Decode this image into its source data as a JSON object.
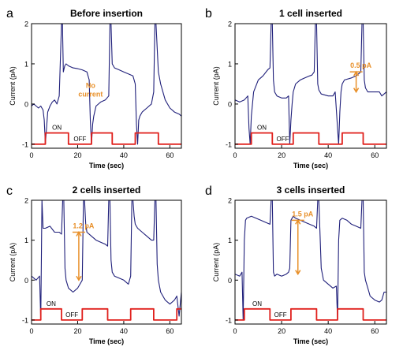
{
  "chart_data": [
    {
      "type": "line",
      "panel_letter": "a",
      "title": "Before insertion",
      "xlabel": "Time (sec)",
      "ylabel": "Current (pA)",
      "xlim": [
        0,
        65
      ],
      "ylim": [
        -1.1,
        2
      ],
      "xticks": [
        0,
        20,
        40,
        60
      ],
      "yticks": [
        -1,
        0,
        1,
        2
      ],
      "series": [
        {
          "color": "#1f1f7a",
          "x": [
            0,
            1,
            2,
            3,
            4,
            5,
            5.5,
            6,
            6.5,
            7,
            8,
            9,
            10,
            11,
            12,
            13,
            13.4,
            13.8,
            14.4,
            15,
            16,
            18,
            20,
            22,
            24,
            25,
            25.5,
            26,
            26.5,
            27,
            28,
            30,
            32,
            33.5,
            34,
            34.5,
            35,
            36,
            38,
            40,
            42,
            44,
            45,
            45.5,
            46,
            46.5,
            47,
            48,
            50,
            52,
            53,
            53.5,
            54,
            55,
            56,
            58,
            60,
            62,
            64,
            65
          ],
          "y": [
            -0.05,
            0.0,
            -0.05,
            -0.1,
            -0.05,
            -0.15,
            -0.4,
            -1.0,
            -0.6,
            -0.2,
            -0.05,
            0.05,
            0.1,
            0.0,
            0.2,
            2.0,
            2.0,
            0.8,
            0.95,
            1.0,
            0.95,
            0.9,
            0.88,
            0.85,
            0.8,
            0.6,
            -0.4,
            -1.0,
            -0.5,
            -0.3,
            -0.05,
            0.05,
            0.1,
            0.2,
            2.0,
            2.0,
            1.0,
            0.9,
            0.85,
            0.8,
            0.75,
            0.7,
            0.5,
            -0.5,
            -1.0,
            -0.4,
            -0.3,
            -0.2,
            -0.1,
            0.0,
            0.3,
            2.0,
            2.0,
            0.8,
            0.5,
            0.1,
            -0.1,
            -0.2,
            -0.25,
            -0.3
          ]
        },
        {
          "color": "#e0201c",
          "x": [
            0,
            6,
            6,
            16,
            16,
            26,
            26,
            35,
            35,
            45,
            45,
            55,
            55,
            65
          ],
          "y": [
            -1,
            -1,
            -0.72,
            -0.72,
            -1,
            -1,
            -0.72,
            -0.72,
            -1,
            -1,
            -0.72,
            -0.72,
            -1,
            -1
          ]
        }
      ],
      "annotations": [
        "No current",
        "ON",
        "OFF"
      ]
    },
    {
      "type": "line",
      "panel_letter": "b",
      "title": "1 cell inserted",
      "xlabel": "Time (sec)",
      "ylabel": "Current (pA)",
      "xlim": [
        0,
        65
      ],
      "ylim": [
        -1.1,
        2
      ],
      "xticks": [
        0,
        20,
        40,
        60
      ],
      "yticks": [
        -1,
        0,
        1,
        2
      ],
      "series": [
        {
          "color": "#1f1f7a",
          "x": [
            0,
            2,
            4,
            5.5,
            6,
            6.5,
            7,
            8,
            10,
            12,
            14,
            15,
            15.5,
            16,
            16.5,
            17,
            18,
            20,
            22,
            23,
            23.5,
            24,
            24.5,
            25,
            26,
            28,
            30,
            32,
            33,
            34,
            34.5,
            35,
            35.5,
            36,
            37,
            40,
            42,
            43,
            44,
            44.5,
            45,
            45.5,
            46,
            47,
            50,
            52,
            53,
            54,
            54.5,
            55,
            55.5,
            56,
            57,
            60,
            62,
            63,
            64,
            65
          ],
          "y": [
            0.1,
            0.05,
            0.1,
            0.2,
            -0.6,
            -1.0,
            -0.3,
            0.3,
            0.6,
            0.7,
            0.85,
            0.9,
            2.0,
            2.0,
            0.6,
            0.3,
            0.2,
            0.15,
            0.15,
            0.2,
            -1.0,
            -0.4,
            0.0,
            0.3,
            0.5,
            0.6,
            0.65,
            0.7,
            0.72,
            0.8,
            2.0,
            2.0,
            0.5,
            0.35,
            0.25,
            0.2,
            0.2,
            0.3,
            -0.6,
            -1.0,
            -0.2,
            0.3,
            0.5,
            0.6,
            0.65,
            0.7,
            0.75,
            0.8,
            2.0,
            2.0,
            0.6,
            0.4,
            0.3,
            0.3,
            0.3,
            0.2,
            0.25,
            0.3
          ]
        },
        {
          "color": "#e0201c",
          "x": [
            0,
            7,
            7,
            16,
            16,
            25,
            25,
            36,
            36,
            46,
            46,
            55,
            55,
            65
          ],
          "y": [
            -1,
            -1,
            -0.72,
            -0.72,
            -1,
            -1,
            -0.72,
            -0.72,
            -1,
            -1,
            -0.72,
            -0.72,
            -1,
            -1
          ]
        }
      ],
      "annotations": [
        "0.5 pA",
        "ON",
        "OFF"
      ]
    },
    {
      "type": "line",
      "panel_letter": "c",
      "title": "2 cells inserted",
      "xlabel": "Time (sec)",
      "ylabel": "Current (pA)",
      "xlim": [
        0,
        65
      ],
      "ylim": [
        -1.1,
        2
      ],
      "xticks": [
        0,
        20,
        40,
        60
      ],
      "yticks": [
        -1,
        0,
        1,
        2
      ],
      "series": [
        {
          "color": "#1f1f7a",
          "x": [
            0,
            2,
            3.5,
            4,
            4.5,
            5,
            6,
            8,
            10,
            12,
            13,
            13.5,
            14,
            14.5,
            15,
            16,
            18,
            20,
            21,
            22,
            22.5,
            23,
            23.5,
            24,
            26,
            28,
            30,
            32,
            33,
            33.5,
            34,
            34.5,
            35,
            36,
            38,
            40,
            42,
            43,
            43.5,
            44,
            44.5,
            45,
            46,
            48,
            50,
            52,
            53,
            53.5,
            54,
            54.5,
            55,
            56,
            58,
            60,
            62,
            63,
            64,
            65
          ],
          "y": [
            0.1,
            0.0,
            0.1,
            -1.0,
            2.0,
            1.3,
            1.3,
            1.35,
            1.2,
            1.2,
            1.15,
            2.0,
            2.0,
            0.3,
            0.0,
            -0.2,
            -0.3,
            -0.2,
            -0.1,
            0.0,
            2.0,
            2.0,
            1.4,
            1.2,
            1.1,
            1.0,
            0.95,
            0.9,
            0.85,
            2.0,
            2.0,
            0.5,
            0.2,
            0.1,
            0.05,
            0.0,
            -0.1,
            0.1,
            2.0,
            2.0,
            1.6,
            1.4,
            1.3,
            1.2,
            1.1,
            1.0,
            1.0,
            2.0,
            2.0,
            0.4,
            0.0,
            -0.3,
            -0.5,
            -0.6,
            -0.5,
            -0.4,
            -0.9,
            -0.3
          ]
        },
        {
          "color": "#e0201c",
          "x": [
            0,
            4,
            4,
            13,
            13,
            22,
            22,
            33,
            33,
            43,
            43,
            53,
            53,
            63,
            63,
            65
          ],
          "y": [
            -1,
            -1,
            -0.72,
            -0.72,
            -1,
            -1,
            -0.72,
            -0.72,
            -1,
            -1,
            -0.72,
            -0.72,
            -1,
            -1,
            -0.72,
            -0.72
          ]
        }
      ],
      "annotations": [
        "1.2 pA",
        "ON",
        "OFF"
      ]
    },
    {
      "type": "line",
      "panel_letter": "d",
      "title": "3 cells inserted",
      "xlabel": "Time (sec)",
      "ylabel": "Current (pA)",
      "xlim": [
        0,
        65
      ],
      "ylim": [
        -1.1,
        2
      ],
      "xticks": [
        0,
        20,
        40,
        60
      ],
      "yticks": [
        -1,
        0,
        1,
        2
      ],
      "series": [
        {
          "color": "#1f1f7a",
          "x": [
            0,
            2,
            3,
            3.5,
            4,
            4.5,
            5,
            7,
            9,
            11,
            13,
            15,
            15.5,
            16,
            16.5,
            17,
            18,
            20,
            22,
            23,
            23.5,
            24,
            25,
            26,
            28,
            30,
            32,
            34,
            35,
            35.5,
            36,
            37,
            38,
            40,
            42,
            43.5,
            44,
            44.5,
            45,
            46,
            48,
            50,
            52,
            54,
            54.5,
            55,
            55.5,
            56,
            57,
            58,
            60,
            62,
            63,
            64,
            65
          ],
          "y": [
            0.15,
            0.1,
            0.2,
            -1.0,
            1.0,
            1.5,
            1.55,
            1.6,
            1.55,
            1.5,
            1.45,
            1.4,
            2.0,
            2.0,
            0.2,
            0.1,
            0.15,
            0.1,
            0.15,
            0.2,
            0.3,
            1.5,
            1.6,
            1.55,
            1.5,
            1.45,
            1.4,
            1.35,
            1.3,
            2.0,
            2.0,
            0.3,
            0.0,
            -0.1,
            -0.2,
            -0.15,
            -1.0,
            1.0,
            1.5,
            1.55,
            1.5,
            1.4,
            1.35,
            1.3,
            2.0,
            2.0,
            0.2,
            0.0,
            -0.2,
            -0.4,
            -0.5,
            -0.55,
            -0.5,
            -0.3,
            -0.3
          ]
        },
        {
          "color": "#e0201c",
          "x": [
            0,
            4,
            4,
            15,
            15,
            24,
            24,
            35,
            35,
            44,
            44,
            55,
            55,
            65
          ],
          "y": [
            -1,
            -1,
            -0.72,
            -0.72,
            -1,
            -1,
            -0.72,
            -0.72,
            -1,
            -1,
            -0.72,
            -0.72,
            -1,
            -1
          ]
        }
      ],
      "annotations": [
        "1.5 pA",
        "ON",
        "OFF"
      ]
    }
  ],
  "colors": {
    "trace": "#1f1f7a",
    "stimulus": "#e0201c",
    "annotation": "#e8902a",
    "axis": "#000000"
  }
}
